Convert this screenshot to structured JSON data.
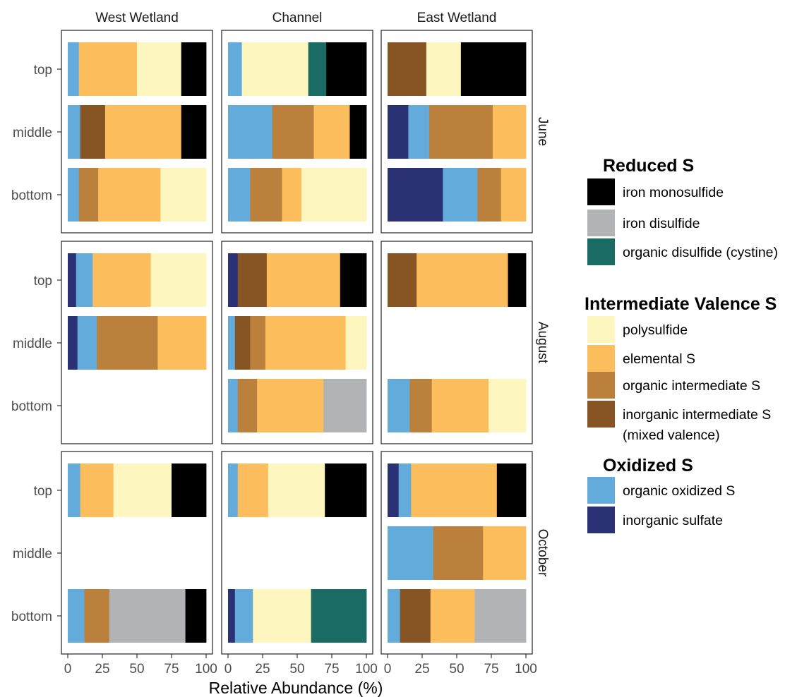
{
  "chart_data": {
    "type": "bar",
    "orientation": "horizontal",
    "stacked": true,
    "xlabel": "Relative Abundance (%)",
    "xlim": [
      0,
      100
    ],
    "xticks": [
      "0",
      "25",
      "50",
      "75",
      "100"
    ],
    "facet_columns": [
      "West Wetland",
      "Channel",
      "East Wetland"
    ],
    "facet_rows": [
      "June",
      "August",
      "October"
    ],
    "depths": [
      "top",
      "middle",
      "bottom"
    ],
    "legend_groups": [
      {
        "title": "Reduced S",
        "items": [
          {
            "key": "iron_monosulfide",
            "lines": [
              "iron monosulfide"
            ]
          },
          {
            "key": "iron_disulfide",
            "lines": [
              "iron disulfide"
            ]
          },
          {
            "key": "organic_disulfide",
            "lines": [
              "organic disulfide (cystine)"
            ]
          }
        ]
      },
      {
        "title": "Intermediate Valence  S",
        "items": [
          {
            "key": "polysulfide",
            "lines": [
              "polysulfide"
            ]
          },
          {
            "key": "elemental_s",
            "lines": [
              "elemental S"
            ]
          },
          {
            "key": "organic_intermediate",
            "lines": [
              "organic intermediate S"
            ]
          },
          {
            "key": "inorganic_intermediate",
            "lines": [
              "inorganic intermediate S",
              "(mixed valence)"
            ]
          }
        ]
      },
      {
        "title": "Oxidized S",
        "items": [
          {
            "key": "organic_oxidized",
            "lines": [
              "organic oxidized S"
            ]
          },
          {
            "key": "inorganic_sulfate",
            "lines": [
              "inorganic sulfate"
            ]
          }
        ]
      }
    ],
    "colors": {
      "inorganic_sulfate": "#2b3175",
      "organic_oxidized": "#62abdb",
      "inorganic_intermediate": "#875424",
      "organic_intermediate": "#bb813c",
      "elemental_s": "#fcbd5c",
      "polysulfide": "#fdf6be",
      "organic_disulfide": "#1b6b65",
      "iron_disulfide": "#b2b3b5",
      "iron_monosulfide": "#000000"
    },
    "stack_order": [
      "inorganic_sulfate",
      "organic_oxidized",
      "inorganic_intermediate",
      "organic_intermediate",
      "elemental_s",
      "polysulfide",
      "organic_disulfide",
      "iron_disulfide",
      "iron_monosulfide"
    ],
    "panels": [
      {
        "site": "West Wetland",
        "month": "June",
        "bars": {
          "top": {
            "organic_oxidized": 8,
            "elemental_s": 42,
            "polysulfide": 32,
            "iron_monosulfide": 18
          },
          "middle": {
            "organic_oxidized": 9,
            "inorganic_intermediate": 18,
            "elemental_s": 55,
            "iron_monosulfide": 18
          },
          "bottom": {
            "organic_oxidized": 8,
            "organic_intermediate": 14,
            "elemental_s": 45,
            "polysulfide": 33
          }
        }
      },
      {
        "site": "Channel",
        "month": "June",
        "bars": {
          "top": {
            "organic_oxidized": 10,
            "polysulfide": 48,
            "organic_disulfide": 13,
            "iron_monosulfide": 29
          },
          "middle": {
            "organic_oxidized": 32,
            "organic_intermediate": 30,
            "elemental_s": 26,
            "iron_monosulfide": 12
          },
          "bottom": {
            "organic_oxidized": 16,
            "organic_intermediate": 23,
            "elemental_s": 14,
            "polysulfide": 47
          }
        }
      },
      {
        "site": "East Wetland",
        "month": "June",
        "bars": {
          "top": {
            "inorganic_intermediate": 28,
            "polysulfide": 25,
            "iron_monosulfide": 47
          },
          "middle": {
            "inorganic_sulfate": 15,
            "organic_oxidized": 15,
            "organic_intermediate": 46,
            "elemental_s": 24
          },
          "bottom": {
            "inorganic_sulfate": 40,
            "organic_oxidized": 25,
            "organic_intermediate": 17,
            "elemental_s": 18
          }
        }
      },
      {
        "site": "West Wetland",
        "month": "August",
        "bars": {
          "top": {
            "inorganic_sulfate": 6,
            "organic_oxidized": 12,
            "elemental_s": 42,
            "polysulfide": 40
          },
          "middle": {
            "inorganic_sulfate": 7,
            "organic_oxidized": 14,
            "organic_intermediate": 44,
            "elemental_s": 35
          }
        }
      },
      {
        "site": "Channel",
        "month": "August",
        "bars": {
          "top": {
            "inorganic_sulfate": 7,
            "inorganic_intermediate": 21,
            "elemental_s": 53,
            "iron_monosulfide": 19
          },
          "middle": {
            "organic_oxidized": 5,
            "inorganic_intermediate": 11,
            "organic_intermediate": 11,
            "elemental_s": 58,
            "polysulfide": 15
          },
          "bottom": {
            "organic_oxidized": 7,
            "organic_intermediate": 14,
            "elemental_s": 48,
            "iron_disulfide": 31
          }
        }
      },
      {
        "site": "East Wetland",
        "month": "August",
        "bars": {
          "top": {
            "inorganic_intermediate": 21,
            "elemental_s": 66,
            "iron_monosulfide": 13
          },
          "bottom": {
            "organic_oxidized": 16,
            "organic_intermediate": 16,
            "elemental_s": 41,
            "polysulfide": 27
          }
        }
      },
      {
        "site": "West Wetland",
        "month": "October",
        "bars": {
          "top": {
            "organic_oxidized": 9,
            "elemental_s": 24,
            "polysulfide": 42,
            "iron_monosulfide": 25
          },
          "bottom": {
            "organic_oxidized": 12,
            "organic_intermediate": 18,
            "iron_disulfide": 55,
            "iron_monosulfide": 15
          }
        }
      },
      {
        "site": "Channel",
        "month": "October",
        "bars": {
          "top": {
            "organic_oxidized": 7,
            "elemental_s": 22,
            "polysulfide": 41,
            "iron_monosulfide": 30
          },
          "bottom": {
            "inorganic_sulfate": 5,
            "organic_oxidized": 13,
            "polysulfide": 42,
            "organic_disulfide": 40
          }
        }
      },
      {
        "site": "East Wetland",
        "month": "October",
        "bars": {
          "top": {
            "inorganic_sulfate": 8,
            "organic_oxidized": 9,
            "elemental_s": 62,
            "iron_monosulfide": 21
          },
          "middle": {
            "organic_oxidized": 33,
            "organic_intermediate": 36,
            "elemental_s": 31
          },
          "bottom": {
            "organic_oxidized": 9,
            "inorganic_intermediate": 22,
            "elemental_s": 32,
            "iron_disulfide": 37
          }
        }
      }
    ]
  }
}
